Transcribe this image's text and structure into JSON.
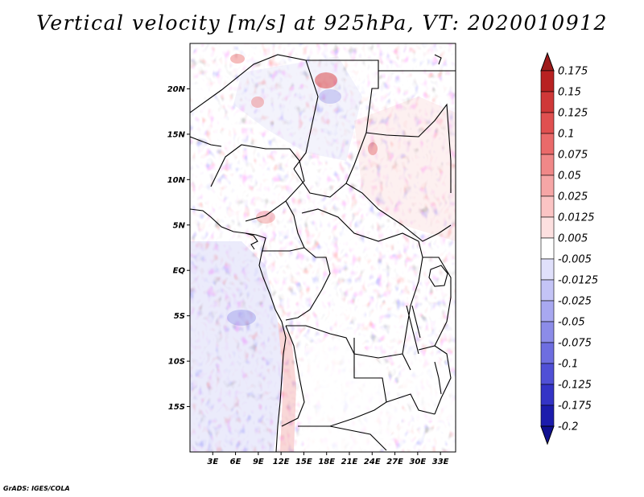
{
  "title": "Vertical velocity [m/s] at 925hPa, VT: 2020010912",
  "footer": "GrADS: IGES/COLA",
  "map": {
    "lon_range": [
      0,
      35
    ],
    "lat_range": [
      -20,
      25
    ],
    "lat_ticks": [
      {
        "lat": 20,
        "label": "20N"
      },
      {
        "lat": 15,
        "label": "15N"
      },
      {
        "lat": 10,
        "label": "10N"
      },
      {
        "lat": 5,
        "label": "5N"
      },
      {
        "lat": 0,
        "label": "EQ"
      },
      {
        "lat": -5,
        "label": "5S"
      },
      {
        "lat": -10,
        "label": "10S"
      },
      {
        "lat": -15,
        "label": "15S"
      }
    ],
    "lon_ticks": [
      {
        "lon": 3,
        "label": "3E"
      },
      {
        "lon": 6,
        "label": "6E"
      },
      {
        "lon": 9,
        "label": "9E"
      },
      {
        "lon": 12,
        "label": "12E"
      },
      {
        "lon": 15,
        "label": "15E"
      },
      {
        "lon": 18,
        "label": "18E"
      },
      {
        "lon": 21,
        "label": "21E"
      },
      {
        "lon": 24,
        "label": "24E"
      },
      {
        "lon": 27,
        "label": "27E"
      },
      {
        "lon": 30,
        "label": "30E"
      },
      {
        "lon": 33,
        "label": "33E"
      }
    ]
  },
  "colorbar": {
    "colors": [
      "#9e1b1b",
      "#b82222",
      "#cf3838",
      "#e05050",
      "#ea6a6a",
      "#f08888",
      "#f6a6a6",
      "#fbc4c4",
      "#fde0e0",
      "#ffffff",
      "#e0e0fb",
      "#c4c4f6",
      "#a8a8f0",
      "#8c8ce8",
      "#6e6ee0",
      "#5050d6",
      "#3434c6",
      "#1c1cac",
      "#101090"
    ],
    "labels": [
      "0.175",
      "0.15",
      "0.125",
      "0.1",
      "0.075",
      "0.05",
      "0.025",
      "0.0125",
      "0.005",
      "-0.005",
      "-0.0125",
      "-0.025",
      "-0.05",
      "-0.075",
      "-0.1",
      "-0.125",
      "-0.175",
      "-0.2"
    ]
  }
}
